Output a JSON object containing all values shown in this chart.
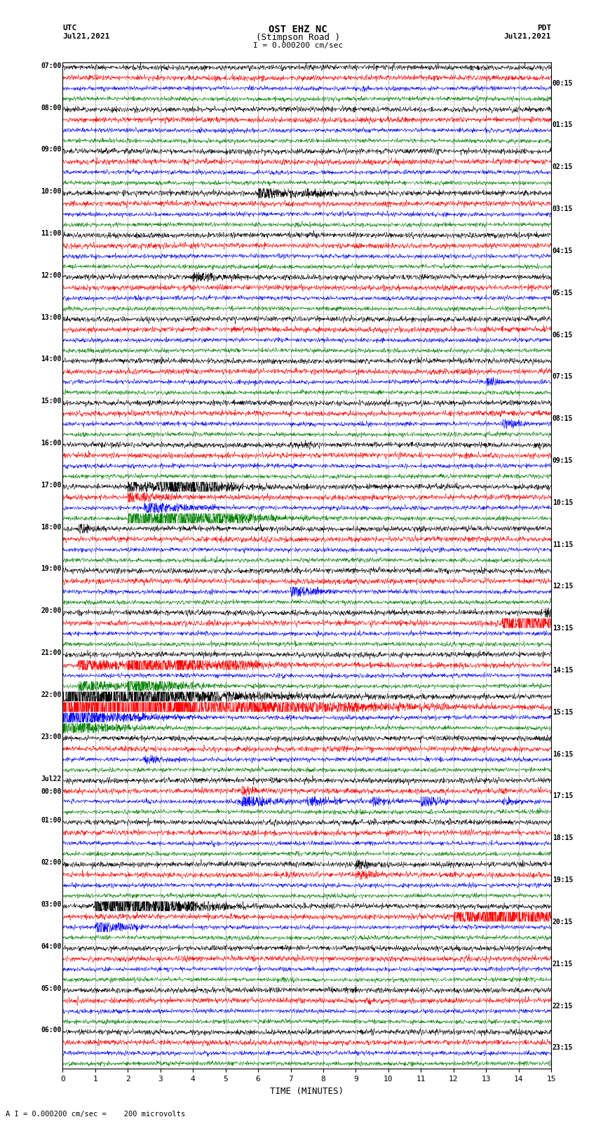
{
  "title_line1": "OST EHZ NC",
  "title_line2": "(Stimpson Road )",
  "scale_text": "I = 0.000200 cm/sec",
  "left_header": "UTC",
  "left_date": "Jul21,2021",
  "right_header": "PDT",
  "right_date": "Jul21,2021",
  "xlabel": "TIME (MINUTES)",
  "footer": "A I = 0.000200 cm/sec =    200 microvolts",
  "xlim": [
    0,
    15
  ],
  "xticks": [
    0,
    1,
    2,
    3,
    4,
    5,
    6,
    7,
    8,
    9,
    10,
    11,
    12,
    13,
    14,
    15
  ],
  "bg_color": "#ffffff",
  "trace_colors": [
    "black",
    "red",
    "blue",
    "green"
  ],
  "utc_labels": [
    "07:00",
    "08:00",
    "09:00",
    "10:00",
    "11:00",
    "12:00",
    "13:00",
    "14:00",
    "15:00",
    "16:00",
    "17:00",
    "18:00",
    "19:00",
    "20:00",
    "21:00",
    "22:00",
    "23:00",
    "Jul22\n00:00",
    "01:00",
    "02:00",
    "03:00",
    "04:00",
    "05:00",
    "06:00"
  ],
  "pdt_labels": [
    "00:15",
    "01:15",
    "02:15",
    "03:15",
    "04:15",
    "05:15",
    "06:15",
    "07:15",
    "08:15",
    "09:15",
    "10:15",
    "11:15",
    "12:15",
    "13:15",
    "14:15",
    "15:15",
    "16:15",
    "17:15",
    "18:15",
    "19:15",
    "20:15",
    "21:15",
    "22:15",
    "23:15"
  ],
  "grid_color": "#999999",
  "noise_seed": 42
}
